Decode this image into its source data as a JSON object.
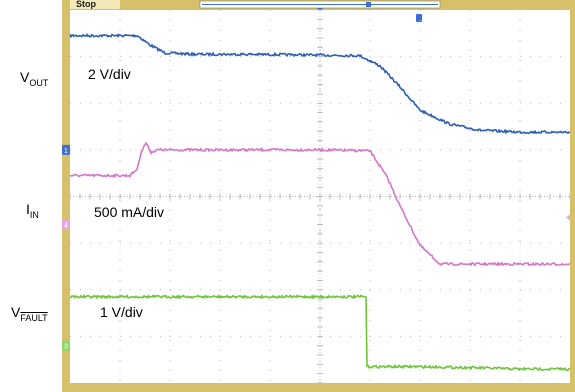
{
  "status": {
    "acquisition_state": "Stop"
  },
  "channels": [
    {
      "id": "vout",
      "label_main": "V",
      "label_sub": "OUT",
      "scale": "2 V/div",
      "color": "#2f5fb0",
      "marker_color": "#3c6fd0"
    },
    {
      "id": "iin",
      "label_main": "I",
      "label_sub": "IN",
      "scale": "500 mA/div",
      "color": "#d477c9",
      "marker_color": "#e7a7df"
    },
    {
      "id": "fault",
      "label_main": "V",
      "label_sub": "FAULT",
      "scale": "1 V/div",
      "color": "#6ec43a",
      "marker_color": "#8ed86a"
    }
  ],
  "colors": {
    "frame": "#d6c06a",
    "grid_dots": "#bcbcbc",
    "background": "#ffffff",
    "trigger_marker": "#3c6fd0"
  },
  "chart_data": {
    "type": "line",
    "x_divisions": 10,
    "y_divisions": 8,
    "grid": true,
    "series": [
      {
        "name": "VOUT",
        "x": [
          0,
          1.35,
          1.6,
          1.9,
          2.5,
          3.5,
          4.5,
          5.8,
          6.2,
          6.6,
          7.0,
          7.6,
          8.2,
          9.0,
          10.0
        ],
        "y": [
          7.45,
          7.45,
          7.25,
          7.08,
          7.05,
          7.05,
          7.04,
          7.02,
          6.8,
          6.35,
          5.85,
          5.55,
          5.42,
          5.38,
          5.38
        ]
      },
      {
        "name": "IIN",
        "x": [
          0,
          1.2,
          1.35,
          1.42,
          1.52,
          1.62,
          1.75,
          2.0,
          3.0,
          4.0,
          5.0,
          6.0,
          6.35,
          6.6,
          7.0,
          7.4,
          8.0,
          10.0
        ],
        "y": [
          4.45,
          4.45,
          4.6,
          4.95,
          5.15,
          4.95,
          5.0,
          5.0,
          5.0,
          5.0,
          5.0,
          4.98,
          4.4,
          3.8,
          2.95,
          2.55,
          2.55,
          2.55
        ]
      },
      {
        "name": "VFAULT",
        "x": [
          0,
          1.0,
          2.0,
          3.0,
          4.0,
          5.0,
          5.93,
          5.94,
          7.0,
          8.0,
          9.0,
          10.0
        ],
        "y": [
          1.85,
          1.85,
          1.85,
          1.85,
          1.85,
          1.85,
          1.85,
          0.35,
          0.35,
          0.33,
          0.3,
          0.3
        ]
      }
    ]
  }
}
